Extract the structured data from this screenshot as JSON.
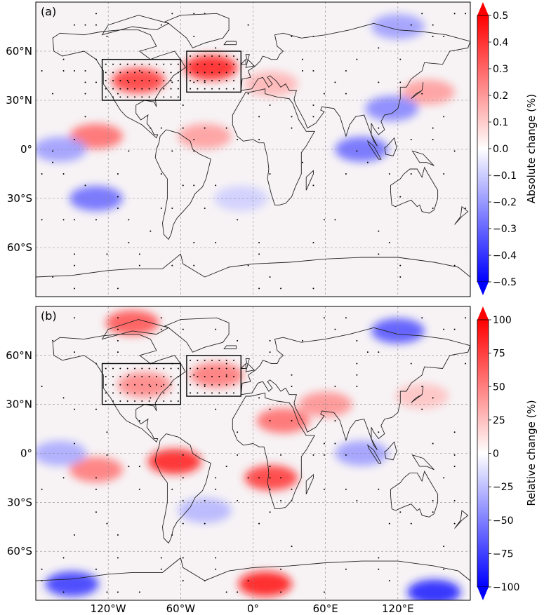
{
  "chart_data": [
    {
      "type": "heatmap",
      "panel_label": "(a)",
      "projection": "equirectangular",
      "lon_range": [
        -180,
        180
      ],
      "lat_range": [
        -90,
        90
      ],
      "lat_ticks": [
        60,
        30,
        0,
        -30,
        -60
      ],
      "lat_tick_labels": [
        "60°N",
        "30°N",
        "0°",
        "30°S",
        "60°S"
      ],
      "lon_ticks": [
        -120,
        -60,
        0,
        60,
        120
      ],
      "lon_tick_labels": [],
      "grid": true,
      "colorbar": {
        "label": "Absolute change (%)",
        "range": [
          -0.5,
          0.5
        ],
        "ticks": [
          0.5,
          0.4,
          0.3,
          0.2,
          0.1,
          0.0,
          -0.1,
          -0.2,
          -0.3,
          -0.4,
          -0.5
        ],
        "tick_labels": [
          "0.5",
          "0.4",
          "0.3",
          "0.2",
          "0.1",
          "0.0",
          "−0.1",
          "−0.2",
          "−0.3",
          "−0.4",
          "−0.5"
        ],
        "colormap": "bwr",
        "extend": "both"
      },
      "boxes": [
        {
          "lon": [
            -125,
            -60
          ],
          "lat": [
            30,
            55
          ]
        },
        {
          "lon": [
            -55,
            -10
          ],
          "lat": [
            35,
            60
          ]
        }
      ],
      "anomalies": [
        {
          "lon": -95,
          "lat": 42,
          "value": 0.4
        },
        {
          "lon": -35,
          "lat": 50,
          "value": 0.45
        },
        {
          "lon": -130,
          "lat": 8,
          "value": 0.3
        },
        {
          "lon": 15,
          "lat": 40,
          "value": 0.15
        },
        {
          "lon": 145,
          "lat": 35,
          "value": 0.2
        },
        {
          "lon": 90,
          "lat": 0,
          "value": -0.3
        },
        {
          "lon": 115,
          "lat": 25,
          "value": -0.25
        },
        {
          "lon": -130,
          "lat": -30,
          "value": -0.3
        },
        {
          "lon": -160,
          "lat": 0,
          "value": -0.2
        },
        {
          "lon": -40,
          "lat": 8,
          "value": 0.2
        },
        {
          "lon": 120,
          "lat": 75,
          "value": -0.2
        },
        {
          "lon": -10,
          "lat": -30,
          "value": -0.1
        }
      ]
    },
    {
      "type": "heatmap",
      "panel_label": "(b)",
      "projection": "equirectangular",
      "lon_range": [
        -180,
        180
      ],
      "lat_range": [
        -90,
        90
      ],
      "lat_ticks": [
        60,
        30,
        0,
        -30,
        -60
      ],
      "lat_tick_labels": [
        "60°N",
        "30°N",
        "0°",
        "30°S",
        "60°S"
      ],
      "lon_ticks": [
        -120,
        -60,
        0,
        60,
        120
      ],
      "lon_tick_labels": [
        "120°W",
        "60°W",
        "0°",
        "60°E",
        "120°E"
      ],
      "grid": true,
      "colorbar": {
        "label": "Relative change (%)",
        "range": [
          -100,
          100
        ],
        "ticks": [
          100,
          75,
          50,
          25,
          0,
          -25,
          -50,
          -75,
          -100
        ],
        "tick_labels": [
          "100",
          "75",
          "50",
          "25",
          "0",
          "−25",
          "−50",
          "−75",
          "−100"
        ],
        "colormap": "bwr",
        "extend": "both"
      },
      "boxes": [
        {
          "lon": [
            -125,
            -60
          ],
          "lat": [
            30,
            55
          ]
        },
        {
          "lon": [
            -55,
            -10
          ],
          "lat": [
            35,
            60
          ]
        }
      ],
      "anomalies": [
        {
          "lon": -90,
          "lat": 42,
          "value": 50
        },
        {
          "lon": -30,
          "lat": 48,
          "value": 55
        },
        {
          "lon": -65,
          "lat": -5,
          "value": 90
        },
        {
          "lon": 15,
          "lat": -15,
          "value": 80
        },
        {
          "lon": 25,
          "lat": 20,
          "value": 60
        },
        {
          "lon": -130,
          "lat": -10,
          "value": 55
        },
        {
          "lon": 60,
          "lat": 30,
          "value": 45
        },
        {
          "lon": 10,
          "lat": -80,
          "value": 95
        },
        {
          "lon": 120,
          "lat": 75,
          "value": -70
        },
        {
          "lon": 150,
          "lat": -85,
          "value": -90
        },
        {
          "lon": -150,
          "lat": -80,
          "value": -80
        },
        {
          "lon": 90,
          "lat": 0,
          "value": -40
        },
        {
          "lon": -160,
          "lat": 0,
          "value": -35
        },
        {
          "lon": -40,
          "lat": -35,
          "value": -30
        },
        {
          "lon": 140,
          "lat": 35,
          "value": 25
        },
        {
          "lon": -100,
          "lat": 80,
          "value": 70
        }
      ]
    }
  ]
}
